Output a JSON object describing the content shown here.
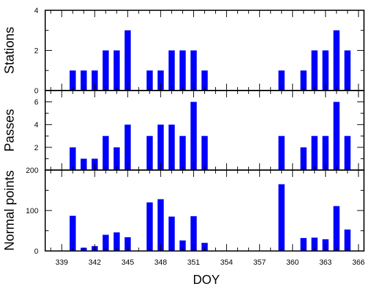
{
  "chart_data": {
    "type": "bar",
    "colors": {
      "bar": "#0000ff",
      "axis": "#000000",
      "background": "#ffffff"
    },
    "grid": false,
    "xlabel": "DOY",
    "xlim": [
      337.5,
      366.5
    ],
    "xticks": [
      339,
      342,
      345,
      348,
      351,
      354,
      357,
      360,
      363,
      366
    ],
    "x": [
      340,
      341,
      342,
      343,
      344,
      345,
      347,
      348,
      349,
      350,
      351,
      352,
      359,
      361,
      362,
      363,
      364,
      365
    ],
    "panels": [
      {
        "ylabel": "Stations",
        "ylim": [
          0,
          4
        ],
        "yticks": [
          0,
          2,
          4
        ],
        "values": [
          1,
          1,
          1,
          2,
          2,
          3,
          1,
          1,
          2,
          2,
          2,
          1,
          1,
          1,
          2,
          2,
          3,
          2
        ]
      },
      {
        "ylabel": "Passes",
        "ylim": [
          0,
          7
        ],
        "yticks": [
          2,
          4,
          6
        ],
        "values": [
          2,
          1,
          1,
          3,
          2,
          4,
          3,
          4,
          4,
          3,
          6,
          3,
          3,
          2,
          3,
          3,
          6,
          3
        ]
      },
      {
        "ylabel": "Normal points",
        "ylim": [
          0,
          200
        ],
        "yticks": [
          0,
          100,
          200
        ],
        "values": [
          87,
          8,
          12,
          40,
          46,
          34,
          120,
          128,
          85,
          26,
          86,
          20,
          165,
          32,
          33,
          29,
          111,
          53
        ]
      }
    ]
  }
}
